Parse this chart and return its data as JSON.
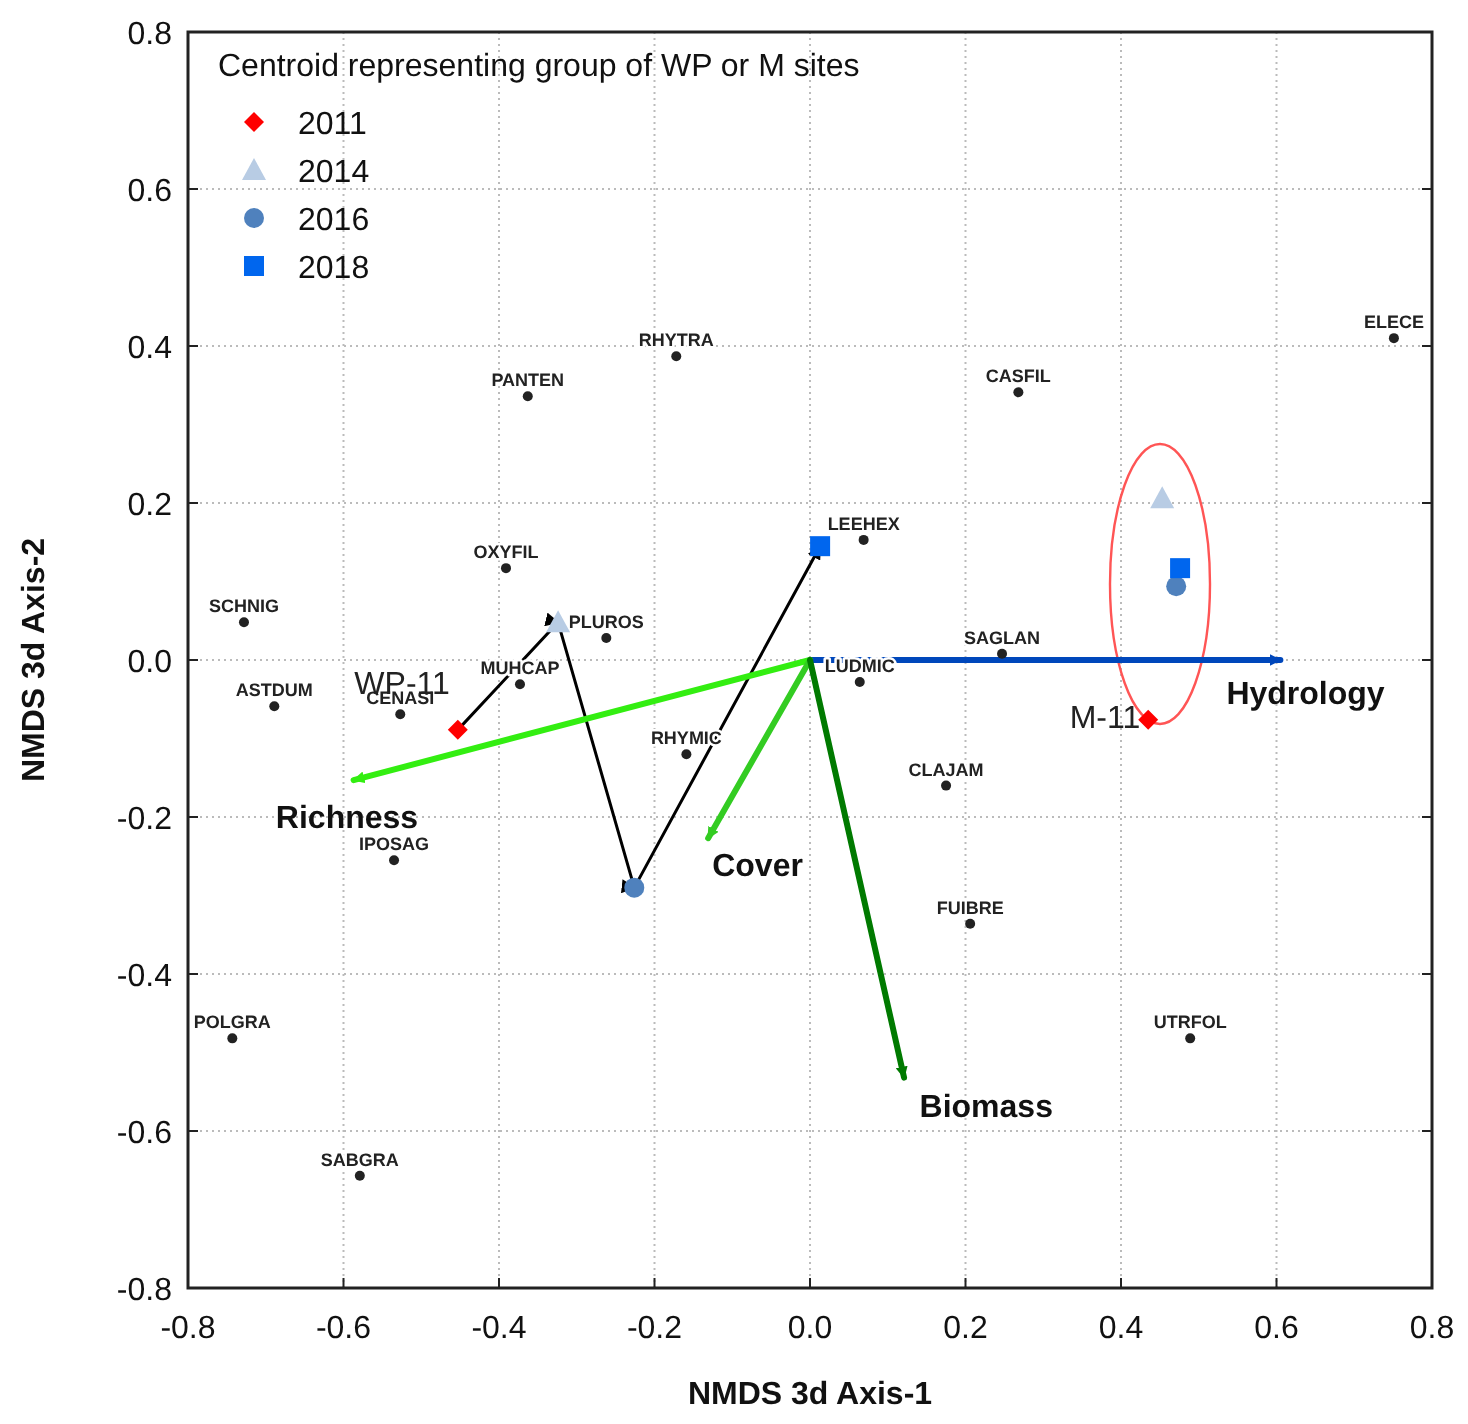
{
  "chart_data": {
    "type": "scatter",
    "xlabel": "NMDS 3d Axis-1",
    "ylabel": "NMDS 3d Axis-2",
    "legend_title": "Centroid representing group of WP or M sites",
    "legend": "top left",
    "grid": true,
    "xlim": [
      -0.8,
      0.8
    ],
    "ylim": [
      -0.8,
      0.8
    ],
    "xticks": [
      -0.8,
      -0.6,
      -0.4,
      -0.2,
      {
        "value": 0,
        "label": "0.0"
      },
      0.2,
      0.4,
      0.6,
      0.8
    ],
    "yticks": [
      -0.8,
      -0.6,
      -0.4,
      -0.2,
      {
        "value": 0,
        "label": "0.0"
      },
      0.2,
      0.4,
      0.6,
      0.8
    ],
    "series": [
      {
        "type": "line",
        "color": "#000000",
        "x": [
          -0.453,
          -0.324,
          -0.226,
          0.013
        ],
        "values": [
          -0.089,
          0.048,
          -0.29,
          0.145
        ]
      },
      {
        "type": "line",
        "name": "Hydrology",
        "color": "#0047bb",
        "x": [
          0,
          0.605
        ],
        "values": [
          0,
          0
        ]
      },
      {
        "type": "line",
        "name": "Richness",
        "color": "#33ee11",
        "x": [
          0,
          -0.587
        ],
        "values": [
          0,
          -0.153
        ]
      },
      {
        "type": "line",
        "name": "Cover",
        "color": "#33cc22",
        "x": [
          0,
          -0.131
        ],
        "values": [
          0,
          -0.227
        ]
      },
      {
        "type": "line",
        "name": "Biomass",
        "color": "#007a00",
        "x": [
          0,
          0.121
        ],
        "values": [
          0,
          -0.532
        ]
      },
      {
        "color": "#222222",
        "marker": "circle",
        "x": [
          -0.172,
          -0.363,
          -0.391,
          -0.728,
          -0.262,
          -0.373,
          -0.689,
          -0.527,
          -0.159,
          -0.535,
          -0.743,
          -0.579,
          0.069,
          0.268,
          0.751,
          0.247,
          0.064,
          0.175,
          0.206,
          0.489
        ],
        "values": [
          0.387,
          0.336,
          0.117,
          0.048,
          0.028,
          -0.031,
          -0.059,
          -0.069,
          -0.12,
          -0.255,
          -0.482,
          -0.657,
          0.153,
          0.341,
          0.41,
          0.008,
          -0.028,
          -0.16,
          -0.336,
          -0.482
        ],
        "value_labels": [
          "RHYTRA",
          "PANTEN",
          "OXYFIL",
          "SCHNIG",
          "PLUROS",
          "MUHCAP",
          "ASTDUM",
          "CENASI",
          "RHYMIC",
          "IPOSAG",
          "POLGRA",
          "SABGRA",
          "LEEHEX",
          "CASFIL",
          "ELECE",
          "SAGLAN",
          "LUDMIC",
          "CLAJAM",
          "FUIBRE",
          "UTRFOL"
        ]
      },
      {
        "name": "2011",
        "color": "#ff0000",
        "marker": "diamond",
        "x": [
          -0.453,
          0.435
        ],
        "values": [
          -0.089,
          -0.076
        ],
        "value_labels": [
          "WP-11",
          "M-11"
        ]
      },
      {
        "name": "2014",
        "color": "#b8cce4",
        "marker": "triangle",
        "x": [
          -0.324,
          0.453
        ],
        "values": [
          0.048,
          0.206
        ]
      },
      {
        "name": "2016",
        "color": "#4f81bd",
        "marker": "circle",
        "x": [
          -0.226,
          0.471
        ],
        "values": [
          -0.29,
          0.094
        ]
      },
      {
        "name": "2018",
        "color": "#0066ee",
        "marker": "square",
        "x": [
          0.013,
          0.476
        ],
        "values": [
          0.145,
          0.117
        ]
      }
    ]
  }
}
